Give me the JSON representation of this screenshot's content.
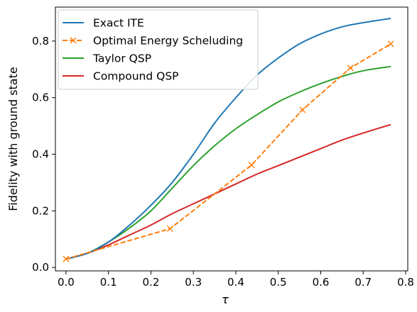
{
  "chart_data": {
    "type": "line",
    "title": "",
    "xlabel": "τ",
    "ylabel": "Fidelity with ground state",
    "xlim": [
      -0.025,
      0.805
    ],
    "ylim": [
      -0.012,
      0.92
    ],
    "xticks": [
      "0.0",
      "0.1",
      "0.2",
      "0.3",
      "0.4",
      "0.5",
      "0.6",
      "0.7",
      "0.8"
    ],
    "yticks": [
      "0.0",
      "0.2",
      "0.4",
      "0.6",
      "0.8"
    ],
    "grid": false,
    "legend_position": "top-left",
    "series": [
      {
        "name": "Exact ITE",
        "color": "#1f77b4",
        "style": "solid",
        "marker": "none",
        "x": [
          0.0,
          0.05,
          0.1,
          0.15,
          0.2,
          0.25,
          0.3,
          0.35,
          0.4,
          0.45,
          0.5,
          0.55,
          0.6,
          0.65,
          0.7,
          0.765
        ],
        "y": [
          0.03,
          0.05,
          0.09,
          0.15,
          0.22,
          0.3,
          0.4,
          0.51,
          0.6,
          0.68,
          0.74,
          0.79,
          0.825,
          0.85,
          0.865,
          0.88
        ]
      },
      {
        "name": "Optimal Energy Scheluding",
        "color": "#ff7f0e",
        "style": "dashed",
        "marker": "x",
        "x": [
          0.0,
          0.245,
          0.437,
          0.557,
          0.67,
          0.765
        ],
        "y": [
          0.03,
          0.137,
          0.362,
          0.557,
          0.705,
          0.79
        ]
      },
      {
        "name": "Taylor QSP",
        "color": "#2ca02c",
        "style": "solid",
        "marker": "none",
        "x": [
          0.0,
          0.05,
          0.1,
          0.15,
          0.2,
          0.25,
          0.3,
          0.35,
          0.4,
          0.45,
          0.5,
          0.55,
          0.6,
          0.65,
          0.7,
          0.765
        ],
        "y": [
          0.03,
          0.05,
          0.09,
          0.14,
          0.2,
          0.28,
          0.36,
          0.43,
          0.49,
          0.54,
          0.585,
          0.62,
          0.65,
          0.675,
          0.695,
          0.71
        ]
      },
      {
        "name": "Compound QSP",
        "color": "#d62728",
        "style": "solid",
        "marker": "none",
        "x": [
          0.0,
          0.05,
          0.1,
          0.15,
          0.2,
          0.25,
          0.3,
          0.35,
          0.4,
          0.45,
          0.5,
          0.55,
          0.6,
          0.65,
          0.7,
          0.765
        ],
        "y": [
          0.03,
          0.05,
          0.08,
          0.115,
          0.15,
          0.19,
          0.225,
          0.26,
          0.295,
          0.33,
          0.36,
          0.39,
          0.42,
          0.45,
          0.475,
          0.505
        ]
      }
    ]
  }
}
